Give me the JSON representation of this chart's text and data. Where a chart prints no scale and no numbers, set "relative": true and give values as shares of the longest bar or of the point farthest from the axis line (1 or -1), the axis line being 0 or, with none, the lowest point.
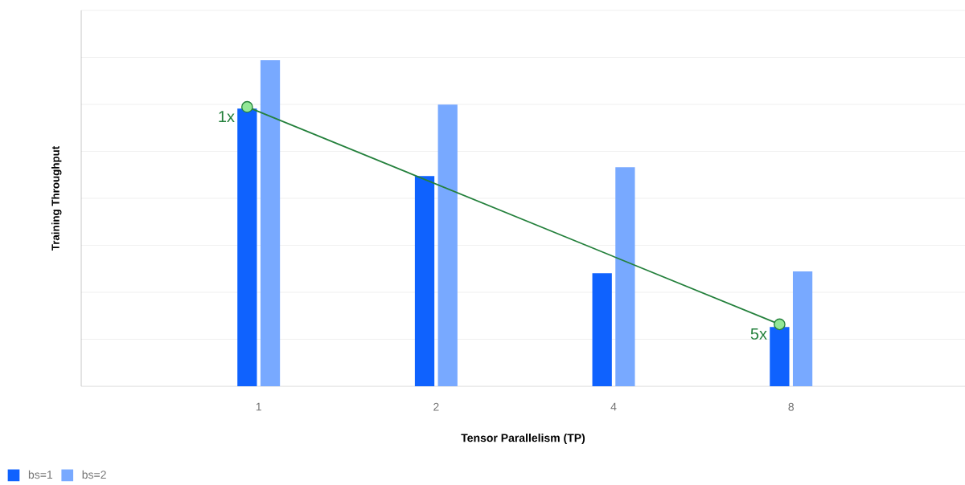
{
  "chart_data": {
    "type": "bar",
    "relative": true,
    "xlabel": "Tensor Parallelism (TP)",
    "ylabel": "Training Throughput",
    "categories": [
      "1",
      "2",
      "4",
      "8"
    ],
    "grid": "y",
    "legend": "bottom left",
    "series": [
      {
        "name": "bs=1",
        "color": "#0f62fe",
        "values": [
          0.852,
          0.645,
          0.347,
          0.182
        ]
      },
      {
        "name": "bs=2",
        "color": "#78a9ff",
        "values": [
          1,
          0.864,
          0.672,
          0.352
        ]
      },
      {
        "type": "line",
        "color": "#24803c",
        "x": [
          "1",
          "8"
        ],
        "values": [
          0.857,
          0.19
        ],
        "marker": "circle"
      }
    ],
    "annotations": [
      {
        "text": "1x",
        "x": "1",
        "y": 0.857
      },
      {
        "text": "5x",
        "x": "8",
        "y": 0.19
      }
    ]
  }
}
